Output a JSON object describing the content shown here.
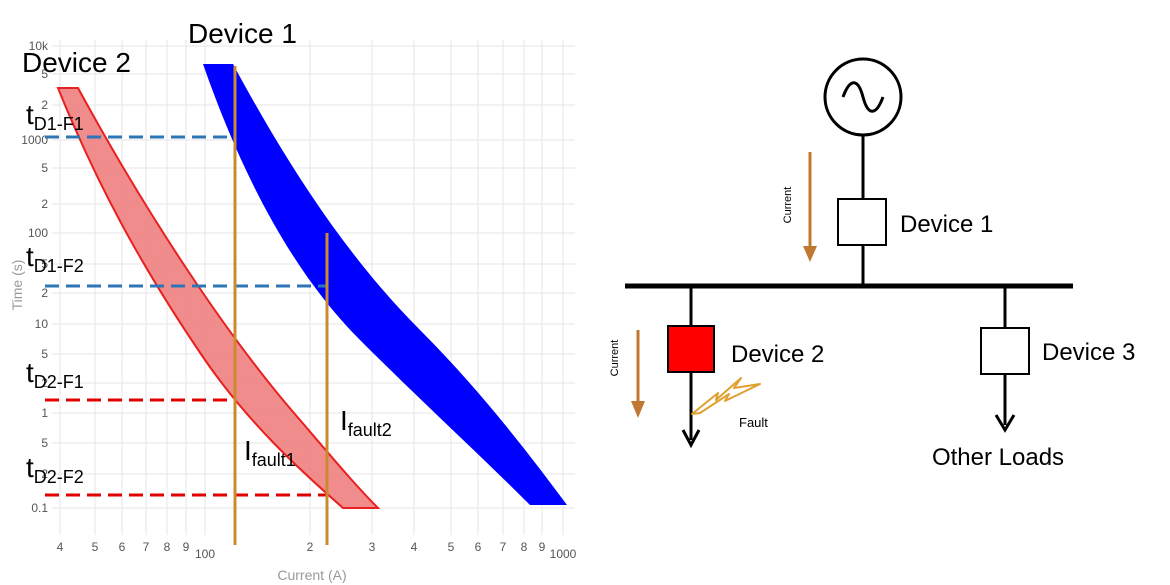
{
  "chart": {
    "device1_label": "Device 1",
    "device2_label": "Device 2",
    "time_labels": {
      "d1f1": {
        "main": "t",
        "sub": "D1-F1"
      },
      "d1f2": {
        "main": "t",
        "sub": "D1-F2"
      },
      "d2f1": {
        "main": "t",
        "sub": "D2-F1"
      },
      "d2f2": {
        "main": "t",
        "sub": "D2-F2"
      }
    },
    "current_labels": {
      "fault1": {
        "main": "I",
        "sub": "fault1"
      },
      "fault2": {
        "main": "I",
        "sub": "fault2"
      }
    },
    "ylabel": "Time (s)",
    "xlabel": "Current (A)",
    "y_ticks": [
      "10k",
      "5",
      "2",
      "1000",
      "5",
      "2",
      "100",
      "5",
      "2",
      "10",
      "5",
      "2",
      "1",
      "5",
      "2",
      "0.1"
    ],
    "x_ticks": [
      "4",
      "5",
      "6",
      "7",
      "8",
      "9",
      "100",
      "2",
      "3",
      "4",
      "5",
      "6",
      "7",
      "8",
      "9",
      "1000"
    ],
    "colors": {
      "device1": "#0000ff",
      "device2": "#f08080",
      "device2_edge": "#e82020",
      "fault_line": "#cc8a2e",
      "device1_dash": "#2e75b6",
      "device2_dash": "#e00000"
    }
  },
  "diagram": {
    "device1_label": "Device 1",
    "device2_label": "Device 2",
    "device3_label": "Device 3",
    "other_loads_label": "Other Loads",
    "current_label_1": "Current",
    "current_label_2": "Current",
    "fault_label": "Fault",
    "colors": {
      "device2_fill": "#ff0000",
      "arrow": "#c07830",
      "fault": "#e0a030"
    }
  }
}
